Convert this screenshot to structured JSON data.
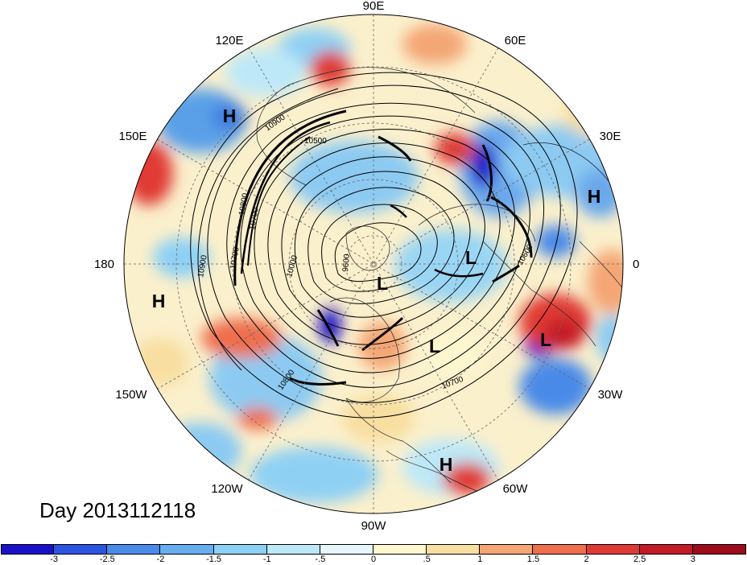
{
  "day_label": "Day 2013112118",
  "longitude_labels": [
    {
      "text": "90E",
      "lon": 90
    },
    {
      "text": "60E",
      "lon": 60
    },
    {
      "text": "30E",
      "lon": 30
    },
    {
      "text": "0",
      "lon": 0
    },
    {
      "text": "30W",
      "lon": -30
    },
    {
      "text": "60W",
      "lon": -60
    },
    {
      "text": "90W",
      "lon": -90
    },
    {
      "text": "120W",
      "lon": -120
    },
    {
      "text": "150W",
      "lon": -150
    },
    {
      "text": "180",
      "lon": 180
    },
    {
      "text": "150E",
      "lon": 150
    },
    {
      "text": "120E",
      "lon": 120
    }
  ],
  "pressure_centers": [
    {
      "letter": "H",
      "name": "high-center-120e"
    },
    {
      "letter": "H",
      "name": "high-center-30e"
    },
    {
      "letter": "H",
      "name": "high-center-180"
    },
    {
      "letter": "H",
      "name": "high-center-60w"
    },
    {
      "letter": "L",
      "name": "low-center-europe"
    },
    {
      "letter": "L",
      "name": "low-center-pole"
    },
    {
      "letter": "L",
      "name": "low-center-atlantic"
    },
    {
      "letter": "L",
      "name": "low-center-north-atlantic"
    }
  ],
  "contour_labels": [
    "10900",
    "10500",
    "10800",
    "10700",
    "10900",
    "10700",
    "10000",
    "9600",
    "10800",
    "10700",
    "10600"
  ],
  "colorbar": {
    "colors": [
      "#1a10c8",
      "#2b55e0",
      "#4a8ae8",
      "#66aef0",
      "#8ed0f4",
      "#bde8f8",
      "#e6f6fc",
      "#fdf6cf",
      "#f8dea0",
      "#f4a674",
      "#ee6e4e",
      "#e03a36",
      "#c41a26",
      "#9c0c1c"
    ],
    "ticks": [
      "-3",
      "-2.5",
      "-2",
      "-1.5",
      "-1",
      "-.5",
      "0",
      ".5",
      "1",
      "1.5",
      "2",
      "2.5",
      "3"
    ]
  }
}
